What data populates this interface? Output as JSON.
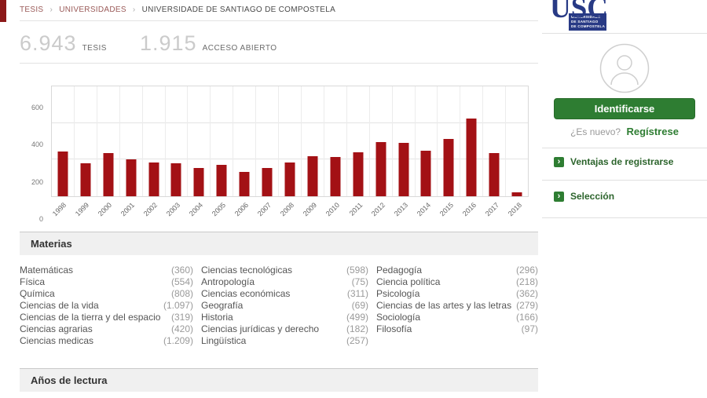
{
  "breadcrumb": {
    "separator": "›",
    "items": [
      {
        "label": "TESIS"
      },
      {
        "label": "UNIVERSIDADES"
      },
      {
        "label": "UNIVERSIDADE DE SANTIAGO DE COMPOSTELA"
      }
    ]
  },
  "stats": {
    "theses_count": "6.943",
    "theses_label": "TESIS",
    "open_access_count": "1.915",
    "open_access_label": "ACCESO ABIERTO"
  },
  "chart_data": {
    "type": "bar",
    "title": "",
    "xlabel": "",
    "ylabel": "",
    "categories": [
      "1998",
      "1999",
      "2000",
      "2001",
      "2002",
      "2003",
      "2004",
      "2005",
      "2006",
      "2007",
      "2008",
      "2009",
      "2010",
      "2011",
      "2012",
      "2013",
      "2014",
      "2015",
      "2016",
      "2017",
      "2018"
    ],
    "values": [
      245,
      180,
      235,
      200,
      185,
      180,
      155,
      170,
      135,
      155,
      185,
      220,
      215,
      240,
      295,
      290,
      250,
      315,
      425,
      235,
      20
    ],
    "ylim": [
      0,
      600
    ],
    "yticks": [
      0,
      200,
      400,
      600
    ],
    "grid": true,
    "legend": false,
    "bar_color": "#a31115"
  },
  "materias": {
    "title": "Materias",
    "columns": [
      [
        {
          "label": "Matemáticas",
          "count": "(360)"
        },
        {
          "label": "Física",
          "count": "(554)"
        },
        {
          "label": "Química",
          "count": "(808)"
        },
        {
          "label": "Ciencias de la vida",
          "count": "(1.097)"
        },
        {
          "label": "Ciencias de la tierra y del espacio",
          "count": "(319)"
        },
        {
          "label": "Ciencias agrarias",
          "count": "(420)"
        },
        {
          "label": "Ciencias medicas",
          "count": "(1.209)"
        }
      ],
      [
        {
          "label": "Ciencias tecnológicas",
          "count": "(598)"
        },
        {
          "label": "Antropología",
          "count": "(75)"
        },
        {
          "label": "Ciencias económicas",
          "count": "(311)"
        },
        {
          "label": "Geografía",
          "count": "(69)"
        },
        {
          "label": "Historia",
          "count": "(499)"
        },
        {
          "label": "Ciencias jurídicas y derecho",
          "count": "(182)"
        },
        {
          "label": "Lingüística",
          "count": "(257)"
        }
      ],
      [
        {
          "label": "Pedagogía",
          "count": "(296)"
        },
        {
          "label": "Ciencia política",
          "count": "(218)"
        },
        {
          "label": "Psicología",
          "count": "(362)"
        },
        {
          "label": "Ciencias de las artes y las letras",
          "count": "(279)"
        },
        {
          "label": "Sociología",
          "count": "(166)"
        },
        {
          "label": "Filosofía",
          "count": "(97)"
        }
      ]
    ]
  },
  "anos": {
    "title": "Años de lectura"
  },
  "sidebar": {
    "logo": {
      "wordmark": "USC",
      "line1": "UNIVERSIDADE",
      "line2": "DE SANTIAGO",
      "line3": "DE COMPOSTELA"
    },
    "login_button": "Identificarse",
    "new_user_prompt": "¿Es nuevo?",
    "register_link": "Regístrese",
    "item_icon": "›",
    "items": [
      {
        "label": "Ventajas de registrarse"
      },
      {
        "label": "Selección"
      }
    ]
  },
  "colors": {
    "bar_red": "#a31115",
    "green": "#2e7d32",
    "usc_blue": "#283a85",
    "breadcrumb_link": "#9a5a58"
  }
}
